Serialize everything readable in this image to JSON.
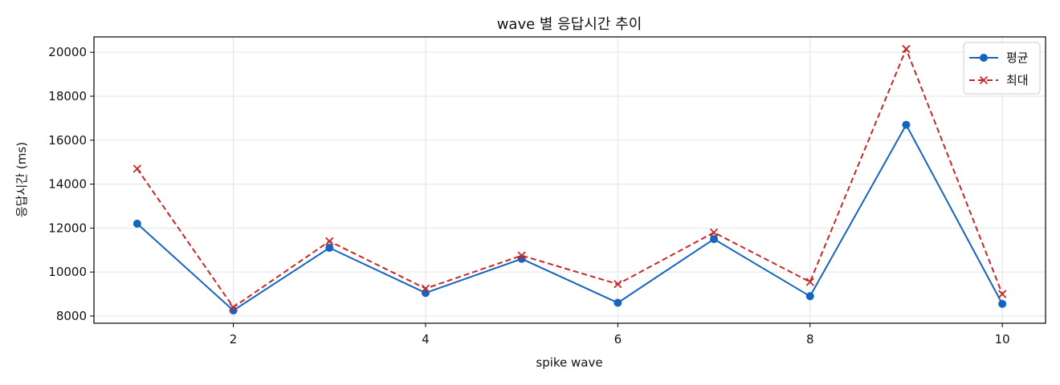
{
  "chart_data": {
    "type": "line",
    "title": "wave 별 응답시간 추이",
    "xlabel": "spike wave",
    "ylabel": "응답시간 (ms)",
    "x": [
      1,
      2,
      3,
      4,
      5,
      6,
      7,
      8,
      9,
      10
    ],
    "xlim": [
      0.55,
      10.45
    ],
    "ylim": [
      7670,
      20700
    ],
    "xticks": [
      2,
      4,
      6,
      8,
      10
    ],
    "yticks": [
      8000,
      10000,
      12000,
      14000,
      16000,
      18000,
      20000
    ],
    "grid": true,
    "legend_position": "top-right",
    "series": [
      {
        "name": "평균",
        "values": [
          12200,
          8250,
          11100,
          9050,
          10600,
          8600,
          11500,
          8900,
          16700,
          8550
        ],
        "color": "#1565c0",
        "line_style": "solid",
        "marker": "circle"
      },
      {
        "name": "최대",
        "values": [
          14700,
          8400,
          11400,
          9250,
          10750,
          9450,
          11800,
          9550,
          20150,
          9000
        ],
        "color": "#c62828",
        "line_style": "dashed",
        "marker": "x"
      }
    ]
  }
}
